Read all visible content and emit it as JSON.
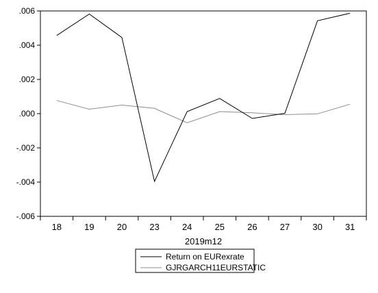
{
  "chart_data": {
    "type": "line",
    "x": [
      "18",
      "19",
      "20",
      "23",
      "24",
      "25",
      "26",
      "27",
      "30",
      "31"
    ],
    "xlabel": "2019m12",
    "ylabel": "",
    "title": "",
    "ylim": [
      -0.006,
      0.006
    ],
    "yticks": [
      ".006",
      ".004",
      ".002",
      ".000",
      "-.002",
      "-.004",
      "-.006"
    ],
    "yticks_values": [
      0.006,
      0.004,
      0.002,
      0.0,
      -0.002,
      -0.004,
      -0.006
    ],
    "grid": false,
    "legend_placement": "bottom-center",
    "series": [
      {
        "name": "Return on EURexrate",
        "color": "#000000",
        "values": [
          0.00457,
          0.00582,
          0.00445,
          -0.00396,
          0.00012,
          0.00089,
          -0.00028,
          2e-05,
          0.00543,
          0.00587
        ]
      },
      {
        "name": "GJRGARCH11EURSTATIC",
        "color": "#8c8c8c",
        "values": [
          0.00077,
          0.00026,
          0.0005,
          0.00031,
          -0.00053,
          0.00012,
          5e-05,
          -6e-05,
          -1e-05,
          0.00055
        ]
      }
    ]
  }
}
